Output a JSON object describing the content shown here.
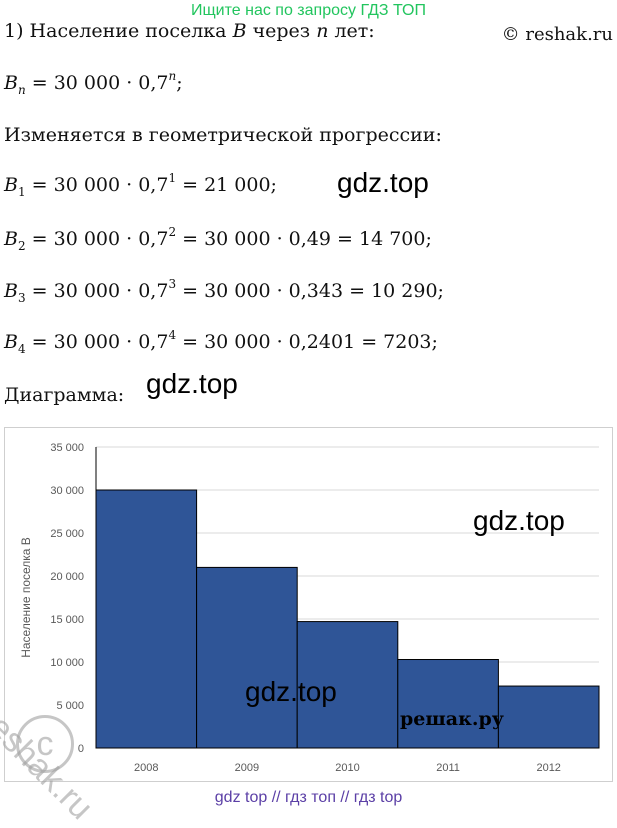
{
  "banner": "Ищите нас по запросу ГДЗ ТОП",
  "copyright": "© reshak.ru",
  "lines": {
    "l1_prefix": "1) Население поселка ",
    "l1_B": "B",
    "l1_mid": " через ",
    "l1_n": "n",
    "l1_suffix": " лет:",
    "formula_B": "B",
    "formula_sub": "n",
    "formula_rest": " = 30 000 · 0,7",
    "formula_sup": "n",
    "formula_end": ";",
    "progression": "Изменяется в геометрической прогрессии:",
    "b1_sub": "1",
    "b1_rest": " = 30 000 · 0,7",
    "b1_sup": "1",
    "b1_end": " = 21 000;",
    "b2_sub": "2",
    "b2_rest": " = 30 000 · 0,7",
    "b2_sup": "2",
    "b2_end": " = 30 000 · 0,49 = 14 700;",
    "b3_sub": "3",
    "b3_rest": " = 30 000 · 0,7",
    "b3_sup": "3",
    "b3_end": " = 30 000 · 0,343 = 10 290;",
    "b4_sub": "4",
    "b4_rest": " = 30 000 · 0,7",
    "b4_sup": "4",
    "b4_end": " = 30 000 · 0,2401 = 7203;",
    "diagram": "Диаграмма:"
  },
  "watermarks": {
    "gdz": "gdz.top",
    "reshak_ru": "решак.ру",
    "reshak_diag": "reshak.ru",
    "circle_c": "c"
  },
  "footer": "gdz top  //  гдз топ  //  гдз top",
  "chart_data": {
    "type": "bar",
    "categories": [
      "2008",
      "2009",
      "2010",
      "2011",
      "2012"
    ],
    "values": [
      30000,
      21000,
      14700,
      10290,
      7203
    ],
    "ylabel": "Население поселка B",
    "xlabel": "",
    "ylim": [
      0,
      35000
    ],
    "yticks": [
      0,
      5000,
      10000,
      15000,
      20000,
      25000,
      30000,
      35000
    ],
    "ytick_labels": [
      "0",
      "5 000",
      "10 000",
      "15 000",
      "20 000",
      "25 000",
      "30 000",
      "35 000"
    ],
    "grid": true,
    "bar_color": "#2f5597",
    "bar_edge_color": "#000000"
  }
}
